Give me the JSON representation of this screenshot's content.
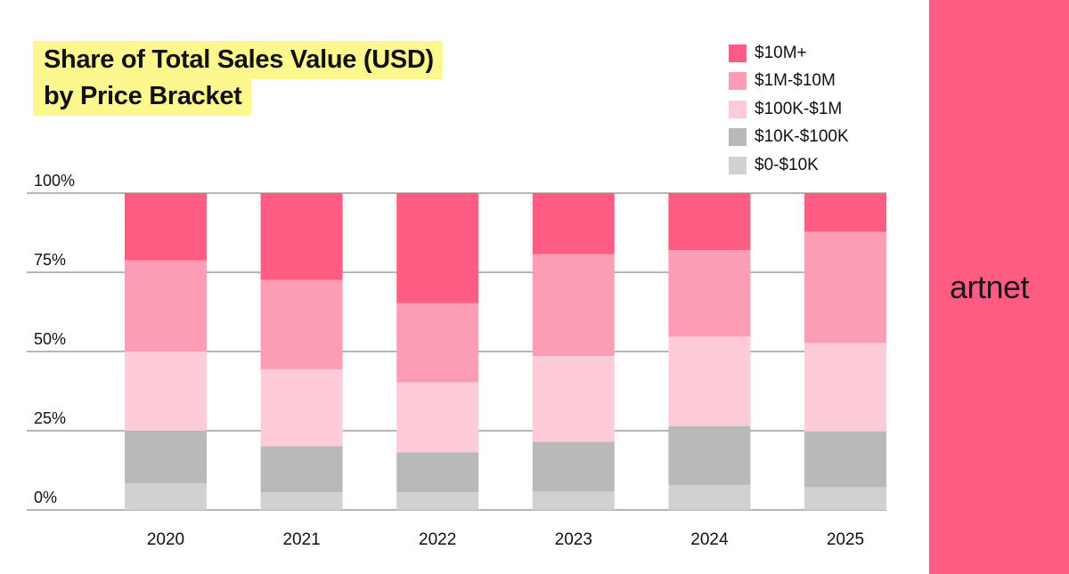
{
  "chart_data": {
    "type": "bar",
    "stacked": true,
    "title": "Share of Total Sales Value (USD) by Price Bracket",
    "title_lines": [
      "Share of Total Sales Value (USD)",
      "by Price Bracket"
    ],
    "xlabel": "",
    "ylabel": "",
    "ylim": [
      0,
      100
    ],
    "yticks": [
      "0%",
      "25%",
      "50%",
      "75%",
      "100%"
    ],
    "ytick_values": [
      0,
      25,
      50,
      75,
      100
    ],
    "grid": true,
    "legend_position": "top-right",
    "categories": [
      "2020",
      "2021",
      "2022",
      "2023",
      "2024",
      "2025"
    ],
    "series": [
      {
        "name": "$0-$10K",
        "color": "#d1d1d1",
        "values": [
          8.4,
          5.6,
          5.6,
          5.8,
          7.9,
          7.2
        ]
      },
      {
        "name": "$10K-$100K",
        "color": "#b9b9b9",
        "values": [
          16.6,
          14.5,
          12.6,
          15.7,
          18.5,
          17.6
        ]
      },
      {
        "name": "$100K-$1M",
        "color": "#fecbd8",
        "values": [
          25.0,
          24.3,
          22.1,
          27.1,
          28.3,
          27.9
        ]
      },
      {
        "name": "$1M-$10M",
        "color": "#fd9db5",
        "values": [
          28.8,
          28.2,
          25.0,
          32.1,
          27.3,
          35.1
        ]
      },
      {
        "name": "$10M+",
        "color": "#ff5c84",
        "values": [
          21.2,
          27.4,
          34.6,
          19.3,
          18.0,
          12.2
        ]
      }
    ]
  },
  "brand": {
    "logo_text": "artnet",
    "color": "#ff5c84"
  },
  "title_highlight_color": "#fcf88e"
}
